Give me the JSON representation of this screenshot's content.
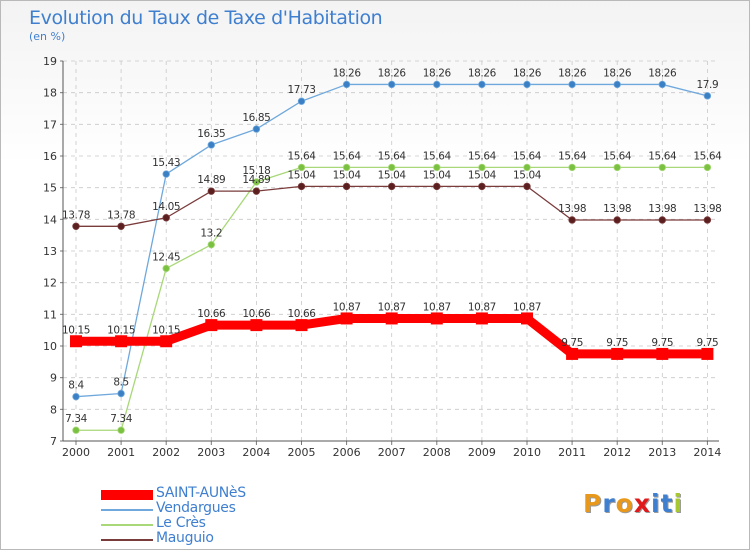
{
  "header": {
    "title": "Evolution du Taux de Taxe d'Habitation",
    "subtitle": "(en %)"
  },
  "logo": {
    "text": "Proxiti",
    "letter_colors": [
      "#e8981a",
      "#3f7fcf",
      "#e8981a",
      "#e01a1a",
      "#3f7fcf",
      "#3f7fcf",
      "#a8c832"
    ]
  },
  "chart_data": {
    "type": "line",
    "title": "Evolution du Taux de Taxe d'Habitation",
    "subtitle": "(en %)",
    "xlabel": "",
    "ylabel": "",
    "x": [
      "2000",
      "2001",
      "2002",
      "2003",
      "2004",
      "2005",
      "2006",
      "2007",
      "2008",
      "2009",
      "2010",
      "2011",
      "2012",
      "2013",
      "2014"
    ],
    "ylim": [
      7,
      19
    ],
    "yticks": [
      "7",
      "8",
      "9",
      "10",
      "11",
      "12",
      "13",
      "14",
      "15",
      "16",
      "17",
      "18",
      "19"
    ],
    "grid": true,
    "legend_position": "bottom-left",
    "series": [
      {
        "name": "SAINT-AUNèS",
        "color": "#ff0000",
        "highlight": true,
        "values": [
          10.15,
          10.15,
          10.15,
          10.66,
          10.66,
          10.66,
          10.87,
          10.87,
          10.87,
          10.87,
          10.87,
          9.75,
          9.75,
          9.75,
          9.75
        ],
        "labels": [
          "10.15",
          "10.15",
          "10.15",
          "10.66",
          "10.66",
          "10.66",
          "10.87",
          "10.87",
          "10.87",
          "10.87",
          "10.87",
          "9.75",
          "9.75",
          "9.75",
          "9.75"
        ]
      },
      {
        "name": "Vendargues",
        "color": "#6fa8dc",
        "marker": "#3b7fc4",
        "values": [
          8.4,
          8.5,
          15.43,
          16.35,
          16.85,
          17.73,
          18.26,
          18.26,
          18.26,
          18.26,
          18.26,
          18.26,
          18.26,
          18.26,
          17.9
        ],
        "labels": [
          "8.4",
          "8.5",
          "15.43",
          "16.35",
          "16.85",
          "17.73",
          "18.26",
          "18.26",
          "18.26",
          "18.26",
          "18.26",
          "18.26",
          "18.26",
          "18.26",
          "17.9"
        ]
      },
      {
        "name": "Le Crès",
        "color": "#a8d878",
        "marker": "#7ac142",
        "values": [
          7.34,
          7.34,
          12.45,
          13.2,
          15.18,
          15.64,
          15.64,
          15.64,
          15.64,
          15.64,
          15.64,
          15.64,
          15.64,
          15.64,
          15.64
        ],
        "labels": [
          "7.34",
          "7.34",
          "12.45",
          "13.2",
          "15.18",
          "15.64",
          "15.64",
          "15.64",
          "15.64",
          "15.64",
          "15.64",
          "15.64",
          "15.64",
          "15.64",
          "15.64"
        ]
      },
      {
        "name": "Mauguio",
        "color": "#7a3b3b",
        "marker": "#5c1f1f",
        "values": [
          13.78,
          13.78,
          14.05,
          14.89,
          14.89,
          15.04,
          15.04,
          15.04,
          15.04,
          15.04,
          15.04,
          13.98,
          13.98,
          13.98,
          13.98
        ],
        "labels": [
          "13.78",
          "13.78",
          "14.05",
          "14.89",
          "14.89",
          "15.04",
          "15.04",
          "15.04",
          "15.04",
          "15.04",
          "15.04",
          "13.98",
          "13.98",
          "13.98",
          "13.98"
        ]
      }
    ]
  }
}
